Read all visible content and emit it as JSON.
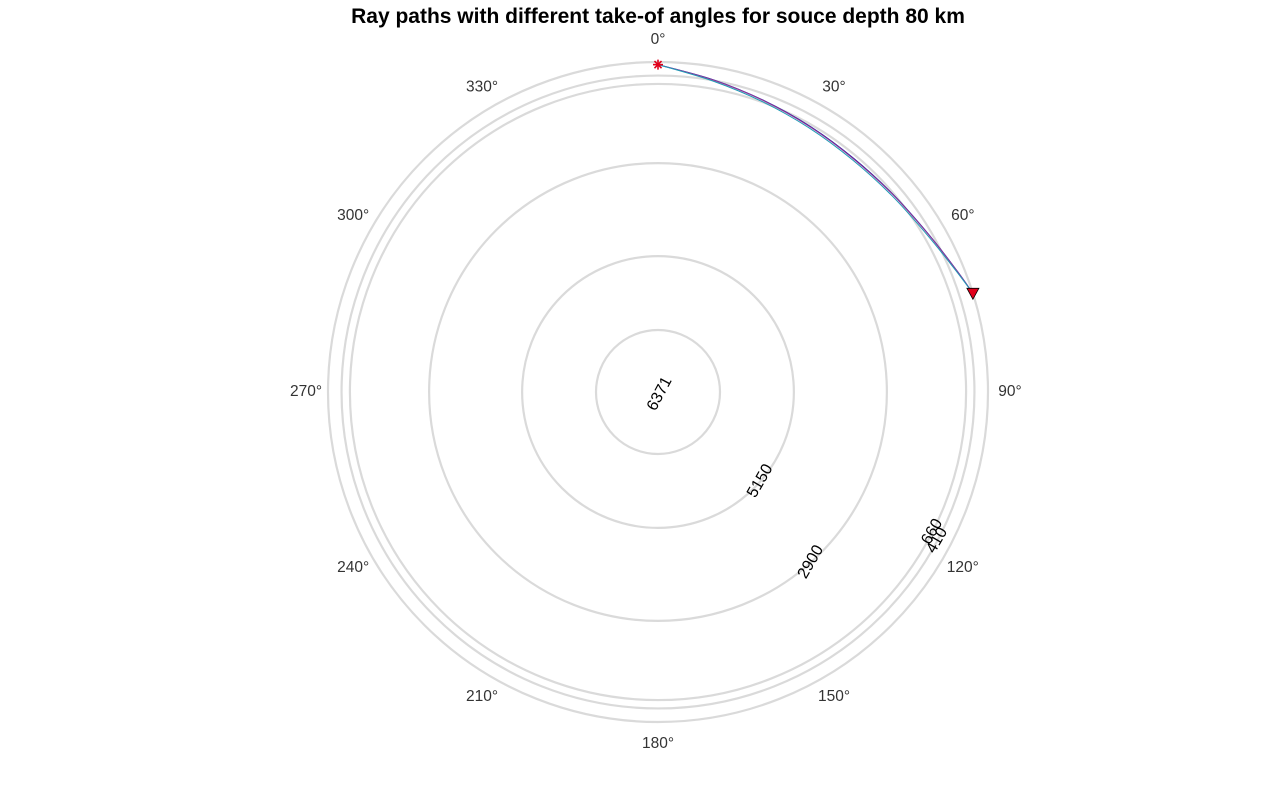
{
  "chart_data": {
    "type": "polar-ray-paths",
    "title": "Ray paths with different take-of angles for souce depth 80 km",
    "angular_axis": {
      "direction": "clockwise",
      "zero": "top",
      "ticks": [
        0,
        30,
        60,
        90,
        120,
        150,
        180,
        210,
        240,
        270,
        300,
        330
      ],
      "tick_labels": [
        "0°",
        "30°",
        "60°",
        "90°",
        "120°",
        "150°",
        "180°",
        "210°",
        "240°",
        "270°",
        "300°",
        "330°"
      ]
    },
    "earth_radius_km": 6371,
    "depth_circles": [
      {
        "depth": 0,
        "label": ""
      },
      {
        "depth": 410,
        "label": "410",
        "label_angle": 118
      },
      {
        "depth": 660,
        "label": "660",
        "label_angle": 117
      },
      {
        "depth": 2900,
        "label": "2900",
        "label_angle": 138
      },
      {
        "depth": 5150,
        "label": "5150",
        "label_angle": 131
      },
      {
        "depth": 6371,
        "label": "6371",
        "label_angle": 0
      }
    ],
    "source": {
      "depth_km": 80,
      "angle_deg": 0,
      "marker": "asterisk",
      "color": "#e0001b"
    },
    "receiver": {
      "depth_km": 0,
      "angle_deg": 72.6,
      "marker": "triangle-down",
      "color": "#e0001b"
    },
    "rays": [
      {
        "color": "#1a1aa0",
        "points": [
          [
            0,
            80
          ],
          [
            10,
            390
          ],
          [
            20,
            600
          ],
          [
            30,
            720
          ],
          [
            40,
            760
          ],
          [
            50,
            690
          ],
          [
            60,
            500
          ],
          [
            68,
            220
          ],
          [
            72.6,
            0
          ]
        ]
      },
      {
        "color": "#9a3a9a",
        "points": [
          [
            0,
            80
          ],
          [
            10,
            400
          ],
          [
            20,
            610
          ],
          [
            30,
            735
          ],
          [
            40,
            775
          ],
          [
            50,
            700
          ],
          [
            60,
            510
          ],
          [
            68,
            225
          ],
          [
            72.6,
            0
          ]
        ]
      },
      {
        "color": "#1f9ab5",
        "points": [
          [
            0,
            80
          ],
          [
            10,
            430
          ],
          [
            20,
            650
          ],
          [
            30,
            775
          ],
          [
            40,
            815
          ],
          [
            50,
            740
          ],
          [
            60,
            545
          ],
          [
            68,
            245
          ],
          [
            72.6,
            0
          ]
        ]
      }
    ],
    "grid": true,
    "legend": "none"
  }
}
